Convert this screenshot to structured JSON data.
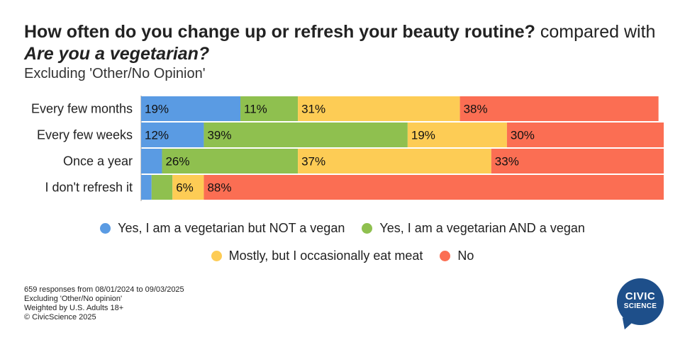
{
  "title": {
    "question1": "How often do you change up or refresh your beauty routine?",
    "connector": "compared with",
    "question2": "Are you a vegetarian?",
    "subtitle": "Excluding 'Other/No Opinion'"
  },
  "chart_data": {
    "type": "bar",
    "orientation": "horizontal",
    "stacked": true,
    "normalized_percent": true,
    "categories": [
      "Every few months",
      "Every few weeks",
      "Once a year",
      "I don't refresh it"
    ],
    "series": [
      {
        "name": "Yes, I am a vegetarian but NOT a vegan",
        "color": "#5a9be3",
        "values": [
          19,
          12,
          4,
          2
        ]
      },
      {
        "name": "Yes, I am a vegetarian AND a vegan",
        "color": "#8fc04f",
        "values": [
          11,
          39,
          26,
          4
        ]
      },
      {
        "name": "Mostly, but I occasionally eat meat",
        "color": "#fdcc55",
        "values": [
          31,
          19,
          37,
          6
        ]
      },
      {
        "name": "No",
        "color": "#fb6e53",
        "values": [
          38,
          30,
          33,
          88
        ]
      }
    ],
    "data_labels": [
      [
        "19%",
        "11%",
        "31%",
        "38%"
      ],
      [
        "12%",
        "39%",
        "19%",
        "30%"
      ],
      [
        "",
        "26%",
        "37%",
        "33%"
      ],
      [
        "",
        "",
        "6%",
        "88%"
      ]
    ],
    "xlim": [
      0,
      100
    ],
    "legend_position": "bottom"
  },
  "footer": {
    "responses": "659 responses from 08/01/2024 to 09/03/2025",
    "excluding": "Excluding 'Other/No opinion'",
    "weighted": "Weighted by U.S. Adults 18+",
    "copyright": "© CivicScience 2025"
  },
  "logo": {
    "line1": "CIVIC",
    "line2": "SCIENCE"
  }
}
